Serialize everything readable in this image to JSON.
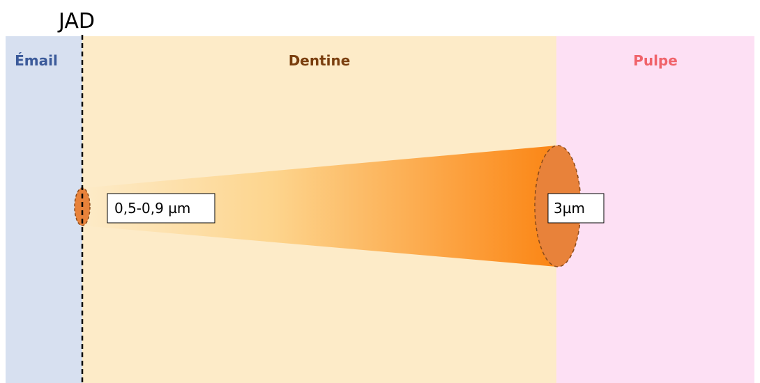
{
  "labels": {
    "jad": "JAD",
    "email": "Émail",
    "dentine": "Dentine",
    "pulpe": "Pulpe"
  },
  "annotations": {
    "small": "0,5-0,9 µm",
    "large": "3µm"
  }
}
